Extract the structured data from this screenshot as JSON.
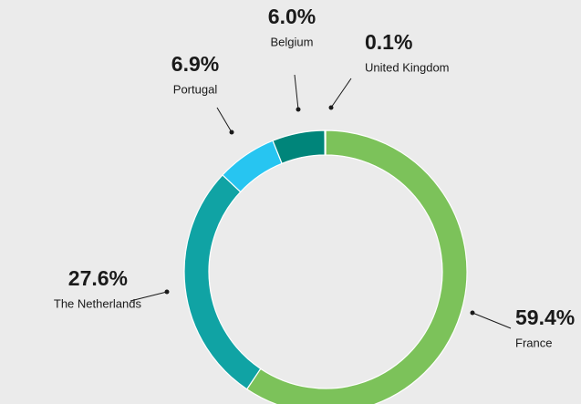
{
  "chart_data": {
    "type": "donut",
    "categories": [
      "France",
      "The Netherlands",
      "Portugal",
      "Belgium",
      "United Kingdom"
    ],
    "values": [
      59.4,
      27.6,
      6.9,
      6.0,
      0.1
    ],
    "value_labels": [
      "59.4%",
      "27.6%",
      "6.9%",
      "6.0%",
      "0.1%"
    ],
    "colors": [
      "#7cc25a",
      "#10a3a4",
      "#27c5f1",
      "#00857a",
      "#00857a"
    ]
  }
}
